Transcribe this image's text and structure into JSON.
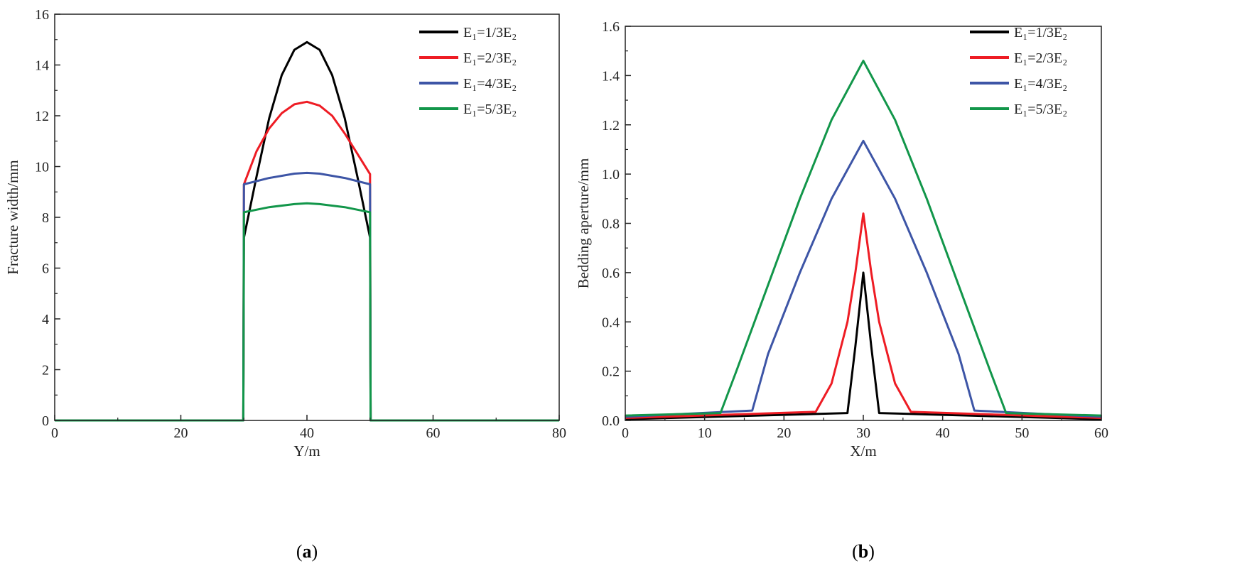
{
  "chart_data": [
    {
      "type": "line",
      "panel_label": "a",
      "xlabel": "Y/m",
      "ylabel": "Fracture width/mm",
      "xlim": [
        0,
        80
      ],
      "ylim": [
        0,
        16
      ],
      "xticks": [
        0,
        20,
        40,
        60,
        80
      ],
      "yticks": [
        0,
        2,
        4,
        6,
        8,
        10,
        12,
        14,
        16
      ],
      "legend_position": "top-right",
      "series": [
        {
          "name": "E₁=1/3E₂",
          "color": "#000000",
          "x": [
            0,
            29.9,
            30,
            32,
            34,
            36,
            38,
            40,
            42,
            44,
            46,
            48,
            50,
            50.1,
            80
          ],
          "y": [
            0,
            0,
            7.2,
            9.6,
            11.9,
            13.6,
            14.6,
            14.9,
            14.6,
            13.6,
            11.9,
            9.6,
            7.2,
            0,
            0
          ]
        },
        {
          "name": "E₁=2/3E₂",
          "color": "#ee1c24",
          "x": [
            0,
            29.9,
            30,
            32,
            34,
            36,
            38,
            40,
            42,
            44,
            46,
            48,
            50,
            50.1,
            80
          ],
          "y": [
            0,
            0,
            9.3,
            10.6,
            11.5,
            12.1,
            12.45,
            12.55,
            12.4,
            12.0,
            11.3,
            10.5,
            9.7,
            0,
            0
          ]
        },
        {
          "name": "E₁=4/3E₂",
          "color": "#3d55a6",
          "x": [
            0,
            29.9,
            30,
            34,
            38,
            40,
            42,
            46,
            50,
            50.1,
            80
          ],
          "y": [
            0,
            0,
            9.3,
            9.55,
            9.72,
            9.75,
            9.72,
            9.55,
            9.3,
            0,
            0
          ]
        },
        {
          "name": "E₁=5/3E₂",
          "color": "#12964a",
          "x": [
            0,
            29.9,
            30,
            34,
            38,
            40,
            42,
            46,
            50,
            50.1,
            80
          ],
          "y": [
            0,
            0,
            8.2,
            8.4,
            8.52,
            8.55,
            8.52,
            8.4,
            8.2,
            0,
            0
          ]
        }
      ]
    },
    {
      "type": "line",
      "panel_label": "b",
      "xlabel": "X/m",
      "ylabel": "Bedding aperture/mm",
      "xlim": [
        0,
        60
      ],
      "ylim": [
        0,
        1.6
      ],
      "xticks": [
        0,
        10,
        20,
        30,
        40,
        50,
        60
      ],
      "yticks": [
        0.0,
        0.2,
        0.4,
        0.6,
        0.8,
        1.0,
        1.2,
        1.4,
        1.6
      ],
      "legend_position": "top-right",
      "series": [
        {
          "name": "E₁=1/3E₂",
          "color": "#000000",
          "x": [
            0,
            28,
            29,
            30,
            31,
            32,
            60
          ],
          "y": [
            0.005,
            0.03,
            0.3,
            0.6,
            0.3,
            0.03,
            0.005
          ]
        },
        {
          "name": "E₁=2/3E₂",
          "color": "#ee1c24",
          "x": [
            0,
            24,
            26,
            28,
            29,
            30,
            31,
            32,
            34,
            36,
            60
          ],
          "y": [
            0.01,
            0.035,
            0.15,
            0.4,
            0.6,
            0.84,
            0.6,
            0.4,
            0.15,
            0.035,
            0.01
          ]
        },
        {
          "name": "E₁=4/3E₂",
          "color": "#3d55a6",
          "x": [
            0,
            16,
            18,
            22,
            26,
            30,
            34,
            38,
            42,
            44,
            60
          ],
          "y": [
            0.015,
            0.04,
            0.27,
            0.6,
            0.9,
            1.135,
            0.9,
            0.6,
            0.27,
            0.04,
            0.015
          ]
        },
        {
          "name": "E₁=5/3E₂",
          "color": "#12964a",
          "x": [
            0,
            12,
            14,
            18,
            22,
            26,
            30,
            34,
            38,
            42,
            46,
            48,
            60
          ],
          "y": [
            0.02,
            0.03,
            0.2,
            0.55,
            0.9,
            1.22,
            1.46,
            1.22,
            0.9,
            0.55,
            0.2,
            0.03,
            0.02
          ]
        }
      ]
    }
  ]
}
